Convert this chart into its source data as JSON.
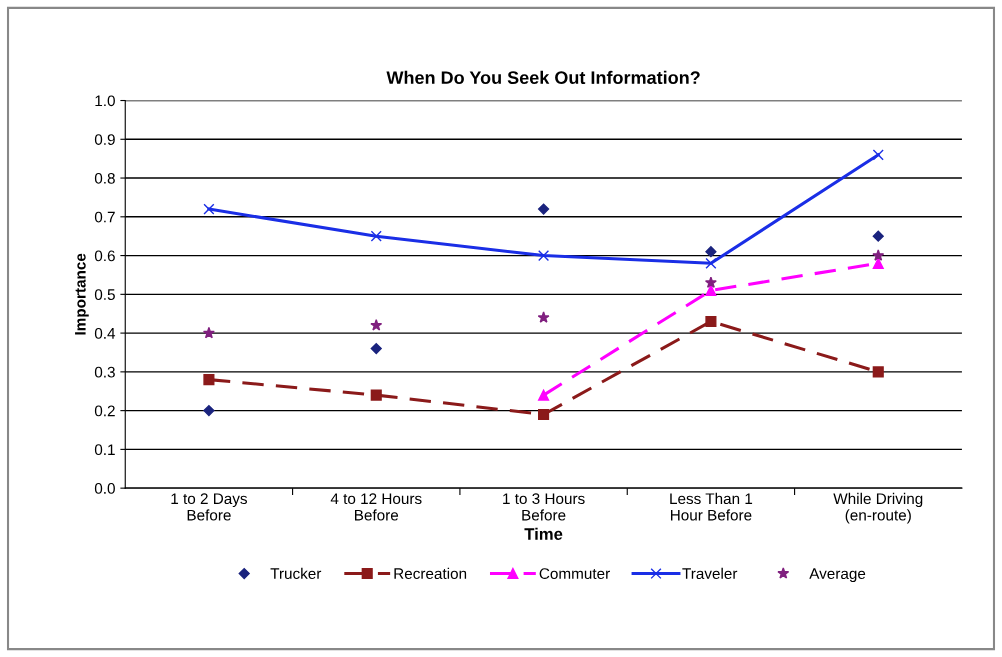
{
  "chart_data": {
    "type": "line",
    "title": "When Do You Seek Out Information?",
    "xlabel": "Time",
    "ylabel": "Importance",
    "categories": [
      "1 to 2 Days\nBefore",
      "4 to 12 Hours\nBefore",
      "1 to 3 Hours\nBefore",
      "Less Than 1\nHour Before",
      "While Driving\n(en-route)"
    ],
    "series": [
      {
        "name": "Trucker",
        "type": "scatter",
        "color": "#1a237e",
        "marker": "diamond",
        "values": [
          0.2,
          0.36,
          0.72,
          0.61,
          0.65
        ]
      },
      {
        "name": "Recreation",
        "color": "#8b1a1a",
        "marker": "square",
        "line_style": "dashed",
        "values": [
          0.28,
          0.24,
          0.19,
          0.43,
          0.3
        ]
      },
      {
        "name": "Commuter",
        "color": "#ff00ff",
        "marker": "triangle",
        "line_style": "dashed",
        "values": [
          null,
          null,
          0.24,
          0.51,
          0.58
        ]
      },
      {
        "name": "Traveler",
        "color": "#1a2ee6",
        "marker": "cross",
        "line_style": "solid",
        "values": [
          0.72,
          0.65,
          0.6,
          0.58,
          0.86
        ]
      },
      {
        "name": "Average",
        "type": "scatter",
        "color": "#80207f",
        "marker": "star",
        "values": [
          0.4,
          0.42,
          0.44,
          0.53,
          0.6
        ]
      }
    ],
    "ylim": [
      0,
      1.0
    ],
    "yticks": [
      {
        "value": 0,
        "label": "0.0"
      },
      0.1,
      0.2,
      0.3,
      0.4,
      0.5,
      0.6,
      0.7,
      0.8,
      0.9,
      {
        "value": 1,
        "label": "1.0"
      }
    ],
    "grid": "y",
    "legend": "bottom"
  }
}
